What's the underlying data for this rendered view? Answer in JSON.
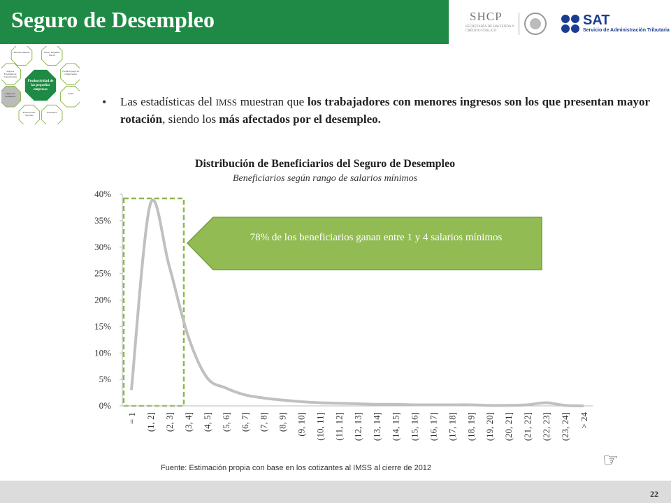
{
  "header": {
    "title": "Seguro de Desempleo",
    "logo_shcp": "SHCP",
    "logo_shcp_sub": "SECRETARÍA DE HACIENDA Y CRÉDITO PÚBLICO",
    "logo_sat": "SAT",
    "logo_sat_sub": "Servicio de Administración Tributaria"
  },
  "diagram": {
    "center": "Productividad de las pequeñas empresas",
    "nodes": [
      "Financia-miento",
      "Nuevo Régimen Fiscal",
      "Facilitar pago de obligaciones",
      "Salud",
      "Pensiones",
      "Prestaciones Sociales",
      "Seguro de desempleo",
      "Apoyos Económicos, Capacitación"
    ]
  },
  "bullet": [
    {
      "text": "Las estadísticas del ",
      "bold": false
    },
    {
      "text": "IMSS",
      "bold": false,
      "small": true
    },
    {
      "text": " muestran que ",
      "bold": false
    },
    {
      "text": "los trabajadores con menores ingresos son los que presentan mayor rotación",
      "bold": true
    },
    {
      "text": ", siendo los ",
      "bold": false
    },
    {
      "text": "más afectados por el desempleo.",
      "bold": true
    }
  ],
  "chart_data": {
    "type": "line",
    "title": "Distribución de Beneficiarios del Seguro de Desempleo",
    "subtitle": "Beneficiarios según rango de salarios mínimos",
    "annotation": "78% de los beneficiarios ganan entre 1 y 4 salarios mínimos",
    "categories": [
      "= 1",
      "(1, 2]",
      "(2, 3]",
      "(3, 4]",
      "(4, 5]",
      "(5, 6]",
      "(6, 7]",
      "(7, 8]",
      "(8, 9]",
      "(9, 10]",
      "(10, 11]",
      "(11, 12]",
      "(12, 13]",
      "(13, 14]",
      "(14, 15]",
      "(15, 16]",
      "(16, 17]",
      "(17, 18]",
      "(18, 19]",
      "(19, 20]",
      "(20, 21]",
      "(21, 22]",
      "(22, 23]",
      "(23, 24]",
      "> 24"
    ],
    "values": [
      3.0,
      38.1,
      26.5,
      13.3,
      5.4,
      3.4,
      2.1,
      1.5,
      1.1,
      0.8,
      0.6,
      0.5,
      0.4,
      0.3,
      0.3,
      0.2,
      0.2,
      0.2,
      0.2,
      0.1,
      0.1,
      0.2,
      0.6,
      0.1,
      0.0
    ],
    "color": "#c0c0c0",
    "ylim": [
      0,
      40
    ],
    "yticks": [
      {
        "value": 0,
        "label": "0%"
      },
      {
        "value": 5,
        "label": "5%"
      },
      {
        "value": 10,
        "label": "10%"
      },
      {
        "value": 15,
        "label": "15%"
      },
      {
        "value": 20,
        "label": "20%"
      },
      {
        "value": 25,
        "label": "25%"
      },
      {
        "value": 30,
        "label": "30%"
      },
      {
        "value": 35,
        "label": "35%"
      },
      {
        "value": 40,
        "label": "40%"
      }
    ],
    "grid": false
  },
  "source": "Fuente: Estimación propia con base en los cotizantes al IMSS al cierre de 2012",
  "page_number": "22"
}
